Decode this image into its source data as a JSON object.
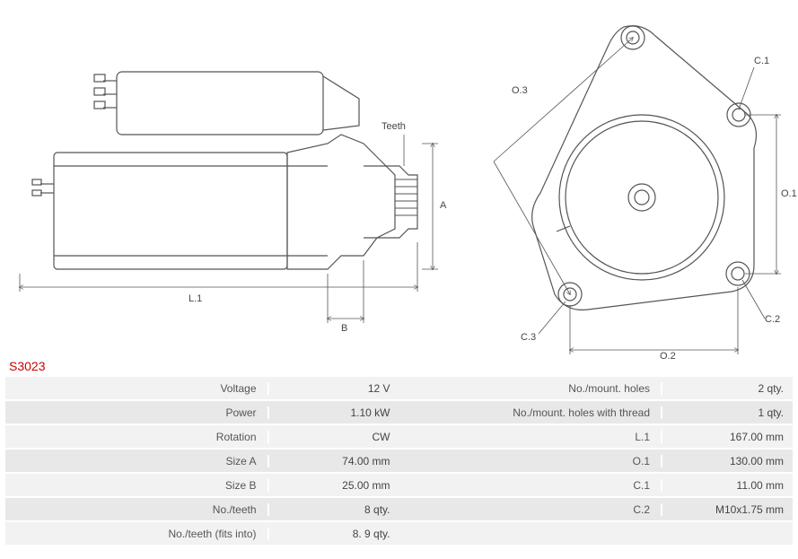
{
  "partId": "S3023",
  "diagram": {
    "stroke": "#555555",
    "strokeWidth": 1.2,
    "dimStroke": "#555555",
    "dimStrokeWidth": 0.8,
    "background": "#ffffff",
    "labels": {
      "teeth": "Teeth",
      "A": "A",
      "B": "B",
      "L1": "L.1",
      "O1": "O.1",
      "O2": "O.2",
      "O3": "O.3",
      "C1": "C.1",
      "C2": "C.2",
      "C3": "C.3"
    }
  },
  "specsLeft": [
    {
      "label": "Voltage",
      "value": "12 V"
    },
    {
      "label": "Power",
      "value": "1.10 kW"
    },
    {
      "label": "Rotation",
      "value": "CW"
    },
    {
      "label": "Size A",
      "value": "74.00 mm"
    },
    {
      "label": "Size B",
      "value": "25.00 mm"
    },
    {
      "label": "No./teeth",
      "value": "8 qty."
    },
    {
      "label": "No./teeth (fits into)",
      "value": "8. 9 qty."
    }
  ],
  "specsRight": [
    {
      "label": "No./mount. holes",
      "value": "2 qty."
    },
    {
      "label": "No./mount. holes with thread",
      "value": "1 qty."
    },
    {
      "label": "L.1",
      "value": "167.00 mm"
    },
    {
      "label": "O.1",
      "value": "130.00 mm"
    },
    {
      "label": "C.1",
      "value": "11.00 mm"
    },
    {
      "label": "C.2",
      "value": "M10x1.75 mm"
    },
    {
      "label": "",
      "value": ""
    }
  ]
}
